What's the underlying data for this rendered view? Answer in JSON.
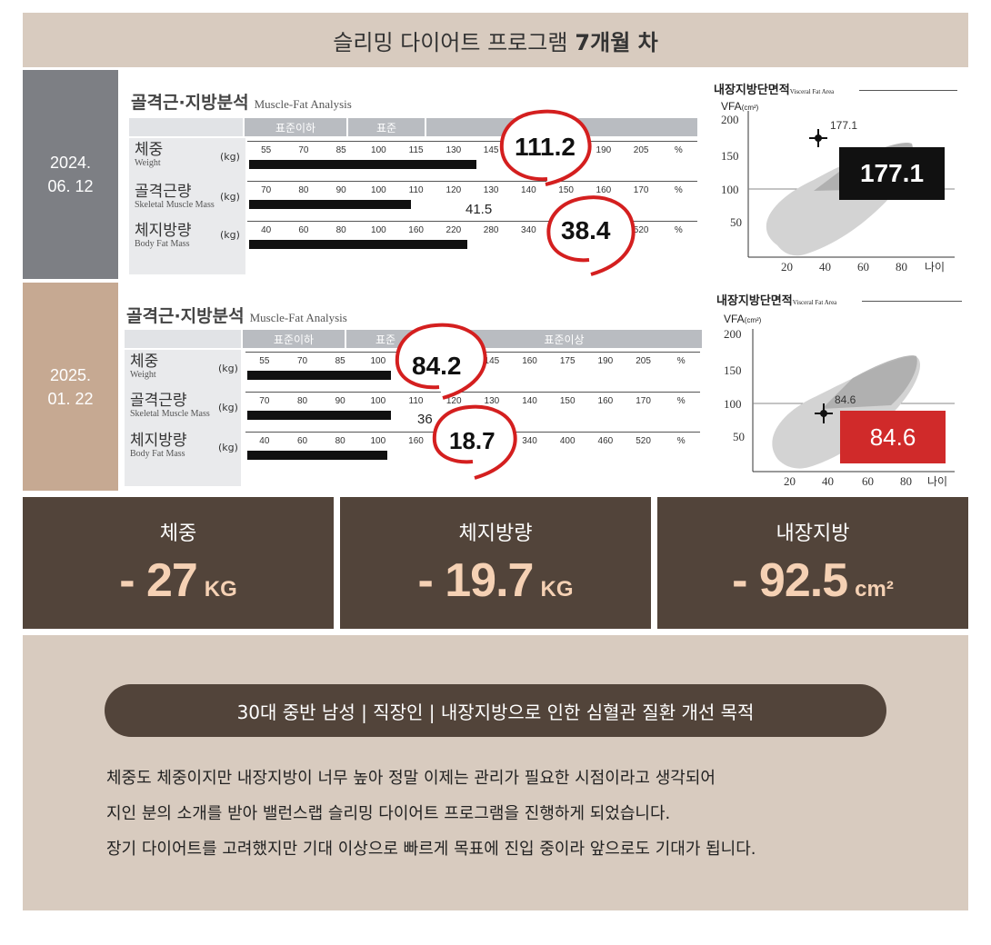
{
  "header": {
    "title_prefix": "슬리밍 다이어트 프로그램",
    "title_bold": "7개월 차"
  },
  "analysis": {
    "title": "골격근·지방분석",
    "subtitle": "Muscle-Fat Analysis",
    "bands": {
      "below": "표준이하",
      "standard": "표준",
      "above": "표준이상"
    },
    "rows": {
      "weight": {
        "label": "체중",
        "sub": "Weight",
        "unit": "(kg)"
      },
      "muscle": {
        "label": "골격근량",
        "sub": "Skeletal Muscle Mass",
        "unit": "(kg)"
      },
      "fat": {
        "label": "체지방량",
        "sub": "Body Fat Mass",
        "unit": "(kg)"
      }
    },
    "ticks_weight": [
      "55",
      "70",
      "85",
      "100",
      "115",
      "130",
      "145",
      "160",
      "175",
      "190",
      "205",
      "%"
    ],
    "ticks_muscle": [
      "70",
      "80",
      "90",
      "100",
      "110",
      "120",
      "130",
      "140",
      "150",
      "160",
      "170",
      "%"
    ],
    "ticks_fat_before": [
      "40",
      "60",
      "80",
      "100",
      "160",
      "220",
      "280",
      "340",
      "400",
      "460",
      "520",
      "%"
    ],
    "ticks_fat_after": [
      "40",
      "60",
      "80",
      "100",
      "160",
      "220",
      "280",
      "340",
      "400",
      "460",
      "520",
      "%"
    ]
  },
  "before": {
    "date": "2024.\n06. 12",
    "weight": "111.2",
    "weight_pct": 0.52,
    "muscle": "41.5",
    "muscle_pct": 0.37,
    "fat": "38.4",
    "fat_pct": 0.5,
    "vfa": "177.1",
    "vfa_point_label": "177.1"
  },
  "after": {
    "date": "2025.\n01. 22",
    "weight": "84.2",
    "weight_pct": 0.33,
    "muscle": "36",
    "muscle_pct": 0.33,
    "fat": "18.7",
    "fat_pct": 0.32,
    "vfa": "84.6",
    "vfa_point_label": "84.6"
  },
  "vfa_chart": {
    "title": "내장지방단면적",
    "subtitle": "Visceral Fat Area",
    "ylabel": "VFA",
    "yunit": "(cm²)",
    "yticks": [
      "200",
      "150",
      "100",
      "50"
    ],
    "xticks": [
      "20",
      "40",
      "60",
      "80"
    ],
    "xlabel": "나이"
  },
  "stats": [
    {
      "label": "체중",
      "value": "- 27",
      "unit": "KG"
    },
    {
      "label": "체지방량",
      "value": "- 19.7",
      "unit": "KG"
    },
    {
      "label": "내장지방",
      "value": "- 92.5",
      "unit": "cm²"
    }
  ],
  "profile": "30대 중반 남성 | 직장인 | 내장지방으로 인한 심혈관 질환 개선 목적",
  "description": [
    "체중도 체중이지만 내장지방이 너무 높아 정말 이제는 관리가 필요한 시점이라고 생각되어",
    "지인 분의 소개를 받아 밸런스랩 슬리밍 다이어트 프로그램을 진행하게 되었습니다.",
    "장기 다이어트를 고려했지만 기대 이상으로 빠르게 목표에 진입 중이라 앞으로도 기대가 됩니다."
  ],
  "colors": {
    "header_bg": "#d8cbbf",
    "before_date_bg": "#7d7f84",
    "after_date_bg": "#c6a992",
    "stat_bg": "#52443a",
    "stat_value": "#f5d1b4",
    "vfa_after_bg": "#d02a2a",
    "circle": "#d41f1f"
  }
}
